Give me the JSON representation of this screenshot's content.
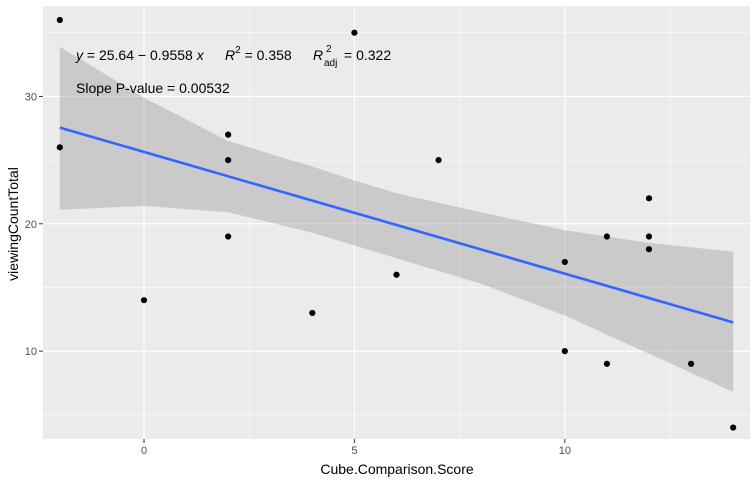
{
  "chart_data": {
    "type": "scatter",
    "title": "",
    "xlabel": "Cube.Comparison.Score",
    "ylabel": "viewingCountTotal",
    "xlim": [
      -2.4,
      14.4
    ],
    "ylim": [
      3.1,
      37.1
    ],
    "x_ticks": [
      0,
      5,
      10
    ],
    "y_ticks": [
      10,
      20,
      30
    ],
    "grid": true,
    "points": [
      {
        "x": -2,
        "y": 36
      },
      {
        "x": -2,
        "y": 26
      },
      {
        "x": 0,
        "y": 14
      },
      {
        "x": 2,
        "y": 27
      },
      {
        "x": 2,
        "y": 25
      },
      {
        "x": 2,
        "y": 19
      },
      {
        "x": 4,
        "y": 13
      },
      {
        "x": 5,
        "y": 35
      },
      {
        "x": 6,
        "y": 16
      },
      {
        "x": 7,
        "y": 25
      },
      {
        "x": 10,
        "y": 17
      },
      {
        "x": 10,
        "y": 10
      },
      {
        "x": 11,
        "y": 19
      },
      {
        "x": 11,
        "y": 9
      },
      {
        "x": 12,
        "y": 22
      },
      {
        "x": 12,
        "y": 19
      },
      {
        "x": 12,
        "y": 18
      },
      {
        "x": 13,
        "y": 9
      },
      {
        "x": 14,
        "y": 4
      }
    ],
    "fit": {
      "intercept": 25.64,
      "slope": -0.9558,
      "x_range": [
        -2,
        14
      ]
    },
    "confidence_band": [
      {
        "x": -2,
        "lower": 21.1,
        "upper": 33.9
      },
      {
        "x": 0,
        "lower": 21.4,
        "upper": 29.9
      },
      {
        "x": 2,
        "lower": 20.9,
        "upper": 26.5
      },
      {
        "x": 4,
        "lower": 19.3,
        "upper": 24.5
      },
      {
        "x": 5,
        "lower": 18.3,
        "upper": 23.4
      },
      {
        "x": 6,
        "lower": 17.3,
        "upper": 22.4
      },
      {
        "x": 8,
        "lower": 15.3,
        "upper": 20.9
      },
      {
        "x": 10,
        "lower": 12.8,
        "upper": 19.5
      },
      {
        "x": 12,
        "lower": 9.8,
        "upper": 18.5
      },
      {
        "x": 14,
        "lower": 6.8,
        "upper": 17.8
      }
    ],
    "colors": {
      "panel": "#ebebeb",
      "grid": "#ffffff",
      "line": "#3366ff",
      "band": "#999999",
      "point": "#000000"
    },
    "annotations": {
      "equation": {
        "y_var": "y",
        "intercept": "25.64",
        "minus": " − ",
        "slope": "0.9558",
        "x_var": "x"
      },
      "r2": {
        "symbol": "R",
        "sup": "2",
        "value": "= 0.358"
      },
      "r2_adj": {
        "symbol": "R",
        "sup": "2",
        "sub": "adj",
        "value": "= 0.322"
      },
      "slope_p": "Slope P-value = 0.00532"
    }
  }
}
